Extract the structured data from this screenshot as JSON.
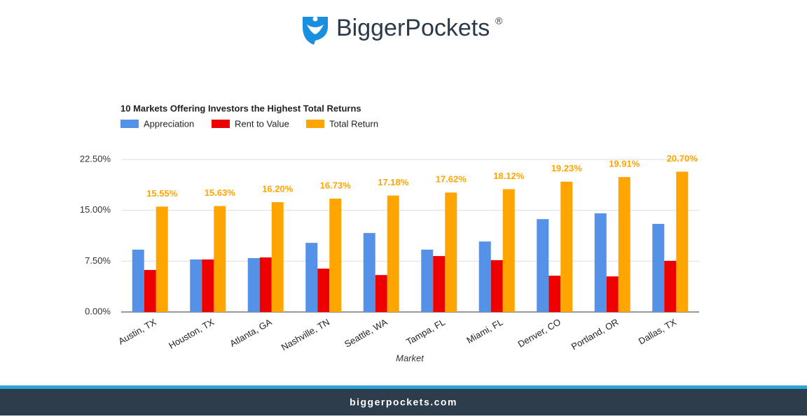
{
  "header": {
    "brand": "BiggerPockets",
    "mark": "®"
  },
  "chart_data": {
    "type": "bar",
    "title": "10 Markets Offering Investors the Highest Total Returns",
    "x_label": "Market",
    "categories": [
      "Austin, TX",
      "Houston, TX",
      "Atlanta, GA",
      "Nashville, TN",
      "Seattle, WA",
      "Tampa, FL",
      "Miami, FL",
      "Denver, CO",
      "Portland, OR",
      "Dallas, TX"
    ],
    "series": [
      {
        "name": "Appreciation",
        "color": "#5591e6",
        "values": [
          9.2,
          7.75,
          7.95,
          10.2,
          11.65,
          9.2,
          10.4,
          13.7,
          14.55,
          13.0
        ]
      },
      {
        "name": "Rent to Value",
        "color": "#ee0000",
        "values": [
          6.2,
          7.75,
          8.05,
          6.4,
          5.45,
          8.25,
          7.65,
          5.35,
          5.25,
          7.55
        ]
      },
      {
        "name": "Total Return",
        "color": "#ffa500",
        "values": [
          15.55,
          15.63,
          16.2,
          16.73,
          17.18,
          17.62,
          18.12,
          19.23,
          19.91,
          20.7
        ],
        "value_labels": [
          "15.55%",
          "15.63%",
          "16.20%",
          "16.73%",
          "17.18%",
          "17.62%",
          "18.12%",
          "19.23%",
          "19.91%",
          "20.70%"
        ]
      }
    ],
    "ylim": [
      0,
      22.5
    ],
    "yticks": [
      {
        "value": 0,
        "label": "0.00%"
      },
      {
        "value": 7.5,
        "label": "7.50%"
      },
      {
        "value": 15,
        "label": "15.00%"
      },
      {
        "value": 22.5,
        "label": "22.50%"
      }
    ],
    "grid": true,
    "legend": "top-left"
  },
  "footer": {
    "url": "biggerpockets.com"
  }
}
